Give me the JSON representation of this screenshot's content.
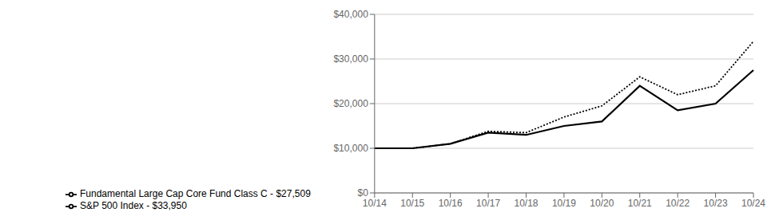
{
  "chart_data": {
    "type": "line",
    "categories": [
      "10/14",
      "10/15",
      "10/16",
      "10/17",
      "10/18",
      "10/19",
      "10/20",
      "10/21",
      "10/22",
      "10/23",
      "10/24"
    ],
    "series": [
      {
        "name": "Fundamental Large Cap Core Fund Class C - $27,509",
        "color": "#000000",
        "line_style": "solid",
        "values": [
          10000,
          10000,
          11000,
          13500,
          13000,
          15000,
          16000,
          24000,
          18500,
          20000,
          27509
        ]
      },
      {
        "name": "S&P 500 Index - $33,950",
        "color": "#000000",
        "line_style": "dotted",
        "values": [
          10000,
          10000,
          11000,
          13800,
          13500,
          17000,
          19500,
          26000,
          22000,
          24000,
          33950
        ]
      }
    ],
    "ylim": [
      0,
      40000
    ],
    "yticks": [
      {
        "value": 0,
        "label": "$0"
      },
      {
        "value": 10000,
        "label": "$10,000"
      },
      {
        "value": 20000,
        "label": "$20,000"
      },
      {
        "value": 30000,
        "label": "$30,000"
      },
      {
        "value": 40000,
        "label": "$40,000"
      }
    ],
    "grid": true,
    "legend": "lower left"
  }
}
